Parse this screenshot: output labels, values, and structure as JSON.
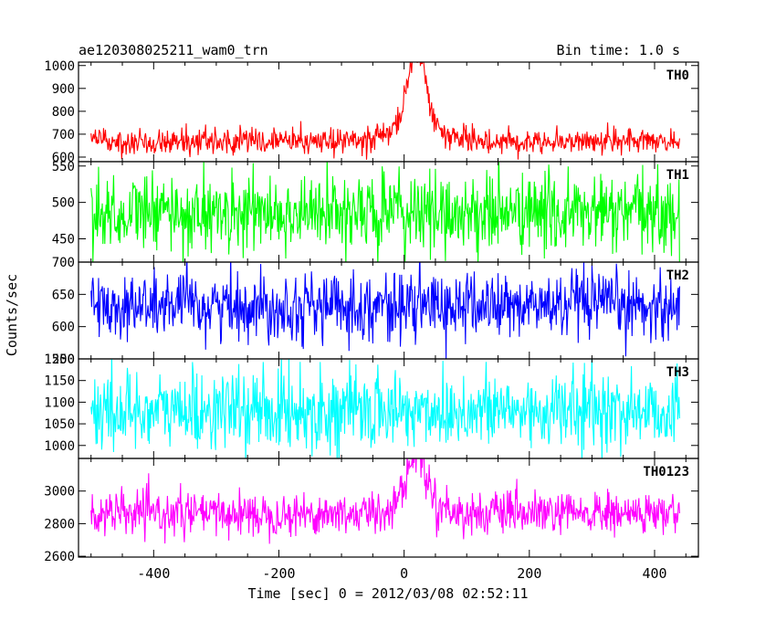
{
  "chart_data": {
    "type": "line",
    "title": "ae120308025211_wam0_trn",
    "bin_time_label": "Bin time: 1.0 s",
    "xlabel": "Time [sec] 0 = 2012/03/08 02:52:11",
    "ylabel": "Counts/sec",
    "xlim": [
      -520,
      470
    ],
    "x_ticks": [
      -400,
      -200,
      0,
      200,
      400
    ],
    "x_start": -500,
    "x_end": 440,
    "series": [
      {
        "name": "TH0",
        "color": "#ff0000",
        "ylim": [
          580,
          1015
        ],
        "y_ticks": [
          600,
          700,
          800,
          900,
          1000
        ],
        "baseline": 670,
        "noise": 28,
        "peak": {
          "time": 20,
          "amplitude": 300,
          "width": 12,
          "wing_amplitude": 120,
          "wing_width": 30
        }
      },
      {
        "name": "TH1",
        "color": "#00ff00",
        "ylim": [
          418,
          556
        ],
        "y_ticks": [
          450,
          500,
          550
        ],
        "baseline": 485,
        "noise": 27
      },
      {
        "name": "TH2",
        "color": "#0000ff",
        "ylim": [
          550,
          700
        ],
        "y_ticks": [
          550,
          600,
          650,
          700
        ],
        "baseline": 632,
        "noise": 26
      },
      {
        "name": "TH3",
        "color": "#00ffff",
        "ylim": [
          970,
          1200
        ],
        "y_ticks": [
          1000,
          1050,
          1100,
          1150,
          1200
        ],
        "baseline": 1080,
        "noise": 45
      },
      {
        "name": "TH0123",
        "color": "#ff00ff",
        "ylim": [
          2595,
          3200
        ],
        "y_ticks": [
          2600,
          2800,
          3000
        ],
        "baseline": 2860,
        "noise": 65,
        "peak": {
          "time": 20,
          "amplitude": 280,
          "width": 14,
          "wing_amplitude": 100,
          "wing_width": 30
        }
      }
    ]
  }
}
